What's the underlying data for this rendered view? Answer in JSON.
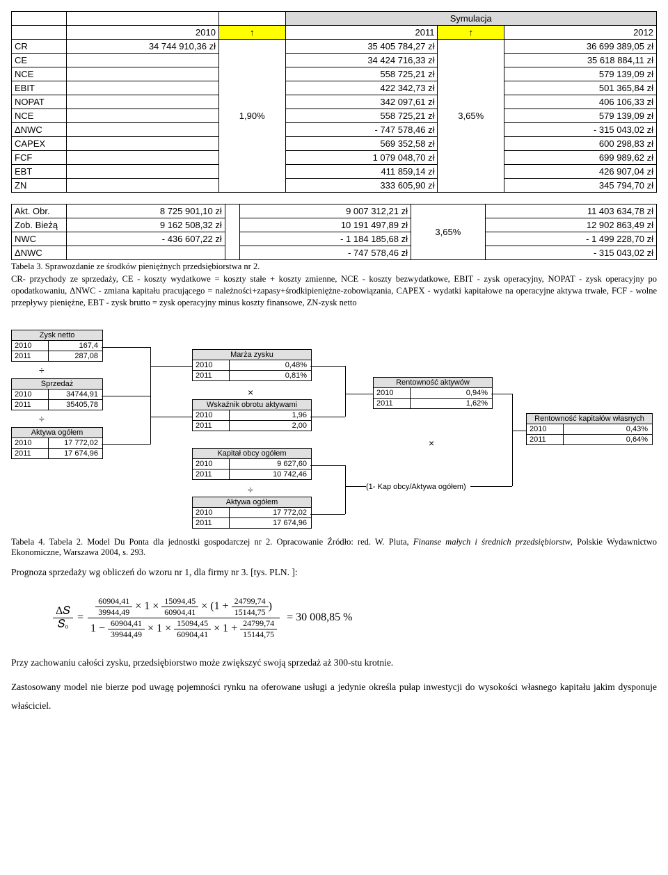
{
  "table1": {
    "header_sim": "Symulacja",
    "years": [
      "2010",
      "2011",
      "2012"
    ],
    "arrow": "↑",
    "pct1": "1,90%",
    "pct2": "3,65%",
    "rows": [
      {
        "label": "CR",
        "v2010": "34 744 910,36 zł",
        "v2011": "35 405 784,27 zł",
        "v2012": "36 699 389,05 zł"
      },
      {
        "label": "CE",
        "v2010": "",
        "v2011": "34 424 716,33 zł",
        "v2012": "35 618 884,11 zł"
      },
      {
        "label": "NCE",
        "v2010": "",
        "v2011": "558 725,21 zł",
        "v2012": "579 139,09 zł"
      },
      {
        "label": "EBIT",
        "v2010": "",
        "v2011": "422 342,73 zł",
        "v2012": "501 365,84 zł"
      },
      {
        "label": "NOPAT",
        "v2010": "",
        "v2011": "342 097,61 zł",
        "v2012": "406 106,33 zł"
      },
      {
        "label": "NCE",
        "v2010": "",
        "v2011": "558 725,21 zł",
        "v2012": "579 139,09 zł"
      },
      {
        "label": "ΔNWC",
        "v2010": "",
        "v2011": "-      747 578,46 zł",
        "v2012": "-      315 043,02 zł"
      },
      {
        "label": "CAPEX",
        "v2010": "",
        "v2011": "569 352,58 zł",
        "v2012": "600 298,83 zł"
      },
      {
        "label": "FCF",
        "v2010": "",
        "v2011": "1 079 048,70 zł",
        "v2012": "699 989,62 zł"
      },
      {
        "label": "EBT",
        "v2010": "",
        "v2011": "411 859,14 zł",
        "v2012": "426 907,04 zł"
      },
      {
        "label": "ZN",
        "v2010": "",
        "v2011": "333 605,90 zł",
        "v2012": "345 794,70 zł"
      }
    ]
  },
  "table2": {
    "pct": "3,65%",
    "rows": [
      {
        "label": "Akt. Obr.",
        "v2010": "8 725 901,10 zł",
        "v2011": "9 007 312,21 zł",
        "v2012": "11 403 634,78 zł"
      },
      {
        "label": "Zob. Bieżą",
        "v2010": "9 162 508,32 zł",
        "v2011": "10 191 497,89 zł",
        "v2012": "12 902 863,49 zł"
      },
      {
        "label": "NWC",
        "v2010": "-      436 607,22 zł",
        "v2011": "-    1 184 185,68 zł",
        "v2012": "-    1 499 228,70 zł"
      },
      {
        "label": "ΔNWC",
        "v2010": "",
        "v2011": "-      747 578,46 zł",
        "v2012": "-      315 043,02 zł"
      }
    ]
  },
  "caption3": "Tabela 3. Sprawozdanie ze środków pieniężnych przedsiębiorstwa nr 2.",
  "footnote": "CR- przychody ze sprzedaży, CE - koszty wydatkowe = koszty stałe + koszty zmienne, NCE - koszty bezwydatkowe, EBIT - zysk operacyjny, NOPAT - zysk operacyjny po opodatkowaniu, ΔNWC - zmiana kapitału pracującego = należności+zapasy+środkipieniężne-zobowiązania, CAPEX - wydatki kapitałowe na operacyjne aktywa trwałe, FCF - wolne przepływy pieniężne, EBT - zysk brutto = zysk operacyjny minus koszty finansowe, ZN-zysk netto",
  "dupont": {
    "zysk_netto": {
      "title": "Zysk netto",
      "r": [
        [
          "2010",
          "167,4"
        ],
        [
          "2011",
          "287,08"
        ]
      ]
    },
    "sprzedaz": {
      "title": "Sprzedaż",
      "r": [
        [
          "2010",
          "34744,91"
        ],
        [
          "2011",
          "35405,78"
        ]
      ]
    },
    "aktywa1": {
      "title": "Aktywa ogółem",
      "r": [
        [
          "2010",
          "17 772,02"
        ],
        [
          "2011",
          "17 674,96"
        ]
      ]
    },
    "marza": {
      "title": "Marża zysku",
      "r": [
        [
          "2010",
          "0,48%"
        ],
        [
          "2011",
          "0,81%"
        ]
      ]
    },
    "wskaznik": {
      "title": "Wskaźnik obrotu aktywami",
      "r": [
        [
          "2010",
          "1,96"
        ],
        [
          "2011",
          "2,00"
        ]
      ]
    },
    "kapital": {
      "title": "Kapitał obcy ogółem",
      "r": [
        [
          "2010",
          "9 627,60"
        ],
        [
          "2011",
          "10 742,46"
        ]
      ]
    },
    "aktywa2": {
      "title": "Aktywa ogółem",
      "r": [
        [
          "2010",
          "17 772,02"
        ],
        [
          "2011",
          "17 674,96"
        ]
      ]
    },
    "rent_akt": {
      "title": "Rentowność aktywów",
      "r": [
        [
          "2010",
          "0,94%"
        ],
        [
          "2011",
          "1,62%"
        ]
      ]
    },
    "rent_kap": {
      "title": "Rentowność kapitałów własnych",
      "r": [
        [
          "2010",
          "0,43%"
        ],
        [
          "2011",
          "0,64%"
        ]
      ]
    },
    "note": "(1- Kap obcy/Aktywa ogółem)",
    "op_div": "÷",
    "op_mul": "×"
  },
  "caption4": "Tabela 4. Tabela 2. Model Du Ponta dla jednostki gospodarczej nr 2. Opracowanie Źródło: red. W. Pluta, ",
  "caption4_ital": "Finanse małych i średnich przedsiębiorstw",
  "caption4_tail": ", Polskie Wydawnictwo Ekonomiczne, Warszawa 2004, s. 293.",
  "prognoza": "Prognoza sprzedaży wg obliczeń do wzoru nr 1, dla firmy nr 3. [tys. PLN. ]:",
  "formula": {
    "lhs_top": "Δ𝑆",
    "lhs_bot": "𝑆ₒ",
    "a_top": "60904,41",
    "a_bot": "39944,49",
    "b": "1",
    "c_top": "15094,45",
    "c_bot": "60904,41",
    "d_top": "24799,74",
    "d_bot": "15144,75",
    "result": "= 30 008,85 %"
  },
  "p1": "Przy zachowaniu całości zysku, przedsiębiorstwo może zwiększyć swoją sprzedaż aż 300-stu krotnie.",
  "p2": "Zastosowany model nie bierze pod uwagę pojemności rynku na oferowane usługi a jedynie określa pułap inwestycji do wysokości własnego kapitału jakim dysponuje właściciel."
}
